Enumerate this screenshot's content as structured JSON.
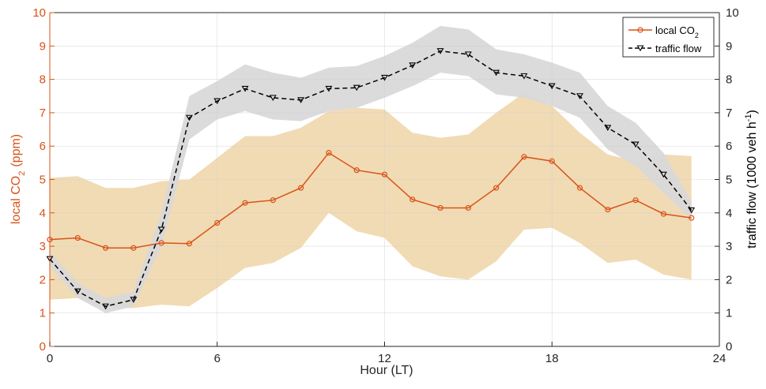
{
  "chart_data": {
    "type": "line",
    "x": [
      0,
      1,
      2,
      3,
      4,
      5,
      6,
      7,
      8,
      9,
      10,
      11,
      12,
      13,
      14,
      15,
      16,
      17,
      18,
      19,
      20,
      21,
      22,
      23
    ],
    "xlabel": "Hour (LT)",
    "xlim": [
      0,
      24
    ],
    "xticks": [
      "0",
      "6",
      "12",
      "18",
      "24"
    ],
    "xtick_values": [
      0,
      6,
      12,
      18,
      24
    ],
    "ylabel_left": "local CO",
    "ylabel_left_sub": "2",
    "ylabel_left_unit": "(ppm)",
    "ylabel_right": "traffic flow (1000 veh h",
    "ylabel_right_sup": "-1",
    "ylabel_right_end": ")",
    "ylim_left": [
      0,
      10
    ],
    "ylim_right": [
      0,
      10
    ],
    "yticks_left": [
      "0",
      "1",
      "2",
      "3",
      "4",
      "5",
      "6",
      "7",
      "8",
      "9",
      "10"
    ],
    "yticks_right": [
      "0",
      "1",
      "2",
      "3",
      "4",
      "5",
      "6",
      "7",
      "8",
      "9",
      "10"
    ],
    "grid": true,
    "legend_position": "top-right",
    "series": [
      {
        "name": "local CO",
        "name_sub": "2",
        "axis": "left",
        "color": "#d95319",
        "marker": "circle",
        "line_style": "solid",
        "values": [
          3.2,
          3.25,
          2.95,
          2.95,
          3.1,
          3.08,
          3.7,
          4.3,
          4.38,
          4.75,
          5.8,
          5.28,
          5.15,
          4.4,
          4.15,
          4.15,
          4.75,
          5.68,
          5.55,
          4.75,
          4.1,
          4.38,
          3.97,
          3.85
        ],
        "band_color": "#f0d9b0",
        "band_upper": [
          5.05,
          5.1,
          4.75,
          4.75,
          4.95,
          5.0,
          5.65,
          6.3,
          6.3,
          6.55,
          7.05,
          7.15,
          7.1,
          6.4,
          6.25,
          6.35,
          7.0,
          7.6,
          7.2,
          6.4,
          5.75,
          5.55,
          5.75,
          5.7
        ],
        "band_lower": [
          1.4,
          1.45,
          1.15,
          1.15,
          1.25,
          1.2,
          1.75,
          2.35,
          2.5,
          2.95,
          4.0,
          3.45,
          3.25,
          2.4,
          2.1,
          2.0,
          2.55,
          3.5,
          3.55,
          3.1,
          2.5,
          2.6,
          2.15,
          2.0
        ]
      },
      {
        "name": "traffic flow",
        "axis": "right",
        "color": "#000000",
        "marker": "triangle-down",
        "line_style": "dashed",
        "values": [
          2.62,
          1.65,
          1.2,
          1.4,
          3.5,
          6.85,
          7.35,
          7.72,
          7.45,
          7.38,
          7.72,
          7.75,
          8.05,
          8.42,
          8.85,
          8.75,
          8.2,
          8.1,
          7.8,
          7.5,
          6.55,
          6.05,
          5.15,
          4.08
        ],
        "band_color": "#d9d9d9",
        "band_upper": [
          2.85,
          1.9,
          1.45,
          1.65,
          4.0,
          7.5,
          7.95,
          8.45,
          8.2,
          8.05,
          8.35,
          8.4,
          8.7,
          9.1,
          9.6,
          9.5,
          8.9,
          8.75,
          8.5,
          8.2,
          7.2,
          6.7,
          5.8,
          4.35
        ],
        "band_lower": [
          2.4,
          1.45,
          1.0,
          1.2,
          3.0,
          6.2,
          6.8,
          7.05,
          6.8,
          6.75,
          7.05,
          7.15,
          7.45,
          7.8,
          8.2,
          8.1,
          7.55,
          7.45,
          7.2,
          6.85,
          5.9,
          5.4,
          4.6,
          3.8
        ]
      }
    ]
  }
}
